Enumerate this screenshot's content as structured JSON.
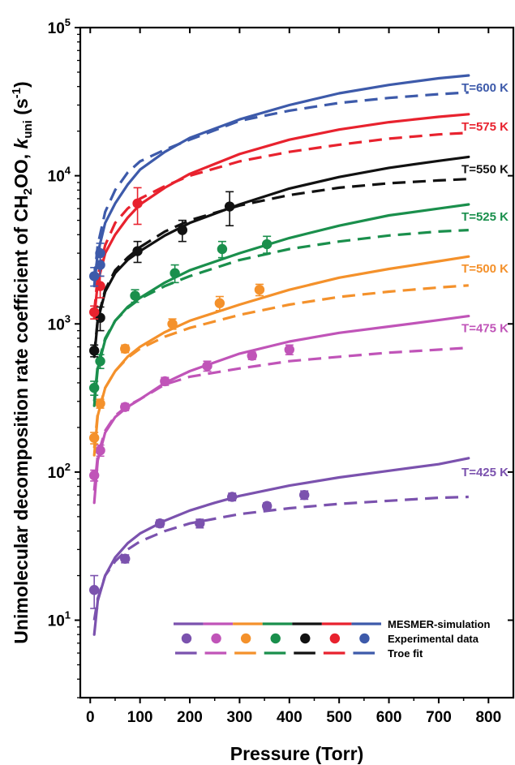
{
  "chart_data": {
    "type": "line",
    "xlabel": "Pressure (Torr)",
    "ylabel_parts": [
      "Unimolecular decomposition rate coefficient of CH",
      "2",
      "OO, ",
      "k",
      "uni",
      " (s",
      "-1",
      ")"
    ],
    "xlim": [
      -20,
      850
    ],
    "ylim": [
      3,
      100000
    ],
    "y_scale": "log",
    "x_ticks": [
      0,
      100,
      200,
      300,
      400,
      500,
      600,
      700,
      800
    ],
    "x_tick_labels": [
      "0",
      "100",
      "200",
      "300",
      "400",
      "500",
      "600",
      "700",
      "800"
    ],
    "y_ticks": [
      10,
      100,
      1000,
      10000,
      100000
    ],
    "y_tick_labels": [
      {
        "base": "10",
        "exp": "1"
      },
      {
        "base": "10",
        "exp": "2"
      },
      {
        "base": "10",
        "exp": "3"
      },
      {
        "base": "10",
        "exp": "4"
      },
      {
        "base": "10",
        "exp": "5"
      }
    ],
    "series": [
      {
        "label": "T=425 K",
        "color": "#7b52ae",
        "mesmer": [
          [
            8,
            8
          ],
          [
            15,
            13.5
          ],
          [
            30,
            20
          ],
          [
            50,
            26.5
          ],
          [
            75,
            33
          ],
          [
            100,
            38.5
          ],
          [
            150,
            47
          ],
          [
            200,
            55
          ],
          [
            250,
            62
          ],
          [
            300,
            69
          ],
          [
            400,
            81
          ],
          [
            500,
            92
          ],
          [
            600,
            102
          ],
          [
            700,
            113
          ],
          [
            760,
            124
          ]
        ],
        "troe": [
          [
            8,
            10
          ],
          [
            15,
            14
          ],
          [
            30,
            20
          ],
          [
            50,
            25
          ],
          [
            75,
            30
          ],
          [
            100,
            34
          ],
          [
            150,
            40
          ],
          [
            200,
            45
          ],
          [
            300,
            52
          ],
          [
            400,
            57
          ],
          [
            500,
            61
          ],
          [
            600,
            64
          ],
          [
            700,
            67
          ],
          [
            760,
            68
          ]
        ],
        "points": [
          [
            8,
            16,
            4
          ],
          [
            70,
            26,
            1.6
          ],
          [
            140,
            45,
            2.5
          ],
          [
            220,
            45,
            3
          ],
          [
            285,
            68,
            4
          ],
          [
            355,
            59,
            3
          ],
          [
            430,
            70,
            4.5
          ]
        ]
      },
      {
        "label": "T=475 K",
        "color": "#c054b8",
        "mesmer": [
          [
            8,
            62
          ],
          [
            15,
            120
          ],
          [
            30,
            185
          ],
          [
            50,
            235
          ],
          [
            75,
            275
          ],
          [
            100,
            310
          ],
          [
            150,
            400
          ],
          [
            200,
            480
          ],
          [
            300,
            630
          ],
          [
            400,
            760
          ],
          [
            500,
            870
          ],
          [
            600,
            960
          ],
          [
            700,
            1060
          ],
          [
            760,
            1130
          ]
        ],
        "troe": [
          [
            8,
            75
          ],
          [
            15,
            130
          ],
          [
            30,
            190
          ],
          [
            50,
            240
          ],
          [
            75,
            280
          ],
          [
            100,
            310
          ],
          [
            150,
            390
          ],
          [
            200,
            440
          ],
          [
            300,
            500
          ],
          [
            400,
            560
          ],
          [
            500,
            600
          ],
          [
            600,
            640
          ],
          [
            700,
            670
          ],
          [
            760,
            690
          ]
        ],
        "points": [
          [
            8,
            95,
            8
          ],
          [
            20,
            140,
            12
          ],
          [
            70,
            275,
            15
          ],
          [
            150,
            410,
            25
          ],
          [
            235,
            520,
            40
          ],
          [
            325,
            610,
            35
          ],
          [
            400,
            670,
            50
          ]
        ]
      },
      {
        "label": "T=500 K",
        "color": "#f4912b",
        "mesmer": [
          [
            8,
            130
          ],
          [
            15,
            240
          ],
          [
            30,
            370
          ],
          [
            50,
            480
          ],
          [
            75,
            600
          ],
          [
            100,
            700
          ],
          [
            150,
            880
          ],
          [
            200,
            1050
          ],
          [
            300,
            1350
          ],
          [
            400,
            1700
          ],
          [
            500,
            2050
          ],
          [
            600,
            2350
          ],
          [
            700,
            2650
          ],
          [
            760,
            2850
          ]
        ],
        "troe": [
          [
            8,
            145
          ],
          [
            15,
            250
          ],
          [
            30,
            370
          ],
          [
            50,
            480
          ],
          [
            75,
            590
          ],
          [
            100,
            680
          ],
          [
            150,
            820
          ],
          [
            200,
            940
          ],
          [
            300,
            1150
          ],
          [
            400,
            1350
          ],
          [
            500,
            1520
          ],
          [
            600,
            1650
          ],
          [
            700,
            1760
          ],
          [
            760,
            1820
          ]
        ],
        "points": [
          [
            8,
            170,
            15
          ],
          [
            20,
            290,
            20
          ],
          [
            70,
            680,
            40
          ],
          [
            165,
            1000,
            80
          ],
          [
            260,
            1380,
            150
          ],
          [
            340,
            1700,
            150
          ]
        ]
      },
      {
        "label": "T=525 K",
        "color": "#1a8f4c",
        "mesmer": [
          [
            8,
            280
          ],
          [
            15,
            500
          ],
          [
            30,
            780
          ],
          [
            50,
            1050
          ],
          [
            75,
            1300
          ],
          [
            100,
            1500
          ],
          [
            150,
            1900
          ],
          [
            200,
            2300
          ],
          [
            300,
            3000
          ],
          [
            400,
            3800
          ],
          [
            500,
            4600
          ],
          [
            600,
            5400
          ],
          [
            700,
            6000
          ],
          [
            760,
            6400
          ]
        ],
        "troe": [
          [
            8,
            300
          ],
          [
            15,
            530
          ],
          [
            30,
            800
          ],
          [
            50,
            1050
          ],
          [
            75,
            1280
          ],
          [
            100,
            1480
          ],
          [
            150,
            1800
          ],
          [
            200,
            2100
          ],
          [
            300,
            2700
          ],
          [
            400,
            3200
          ],
          [
            500,
            3600
          ],
          [
            600,
            3950
          ],
          [
            700,
            4200
          ],
          [
            760,
            4300
          ]
        ],
        "points": [
          [
            8,
            370,
            40
          ],
          [
            20,
            560,
            60
          ],
          [
            90,
            1550,
            150
          ],
          [
            170,
            2200,
            300
          ],
          [
            265,
            3200,
            400
          ],
          [
            355,
            3450,
            450
          ]
        ]
      },
      {
        "label": "T=550 K",
        "color": "#111111",
        "mesmer": [
          [
            8,
            600
          ],
          [
            15,
            1050
          ],
          [
            30,
            1650
          ],
          [
            50,
            2200
          ],
          [
            75,
            2700
          ],
          [
            100,
            3100
          ],
          [
            150,
            3950
          ],
          [
            200,
            4800
          ],
          [
            300,
            6400
          ],
          [
            400,
            8200
          ],
          [
            500,
            9800
          ],
          [
            600,
            11300
          ],
          [
            700,
            12600
          ],
          [
            760,
            13400
          ]
        ],
        "troe": [
          [
            8,
            620
          ],
          [
            15,
            1080
          ],
          [
            30,
            1700
          ],
          [
            50,
            2300
          ],
          [
            75,
            2800
          ],
          [
            100,
            3300
          ],
          [
            150,
            4200
          ],
          [
            200,
            5000
          ],
          [
            300,
            6300
          ],
          [
            400,
            7400
          ],
          [
            500,
            8300
          ],
          [
            600,
            8900
          ],
          [
            700,
            9300
          ],
          [
            760,
            9500
          ]
        ],
        "points": [
          [
            8,
            660,
            60
          ],
          [
            20,
            1100,
            200
          ],
          [
            95,
            3100,
            500
          ],
          [
            185,
            4300,
            700
          ],
          [
            280,
            6200,
            1600
          ]
        ]
      },
      {
        "label": "T=575 K",
        "color": "#e8222e",
        "mesmer": [
          [
            8,
            1100
          ],
          [
            15,
            1900
          ],
          [
            30,
            3000
          ],
          [
            50,
            4000
          ],
          [
            75,
            5200
          ],
          [
            100,
            6400
          ],
          [
            150,
            8300
          ],
          [
            200,
            10300
          ],
          [
            300,
            14000
          ],
          [
            400,
            17500
          ],
          [
            500,
            20500
          ],
          [
            600,
            23000
          ],
          [
            700,
            25000
          ],
          [
            760,
            26000
          ]
        ],
        "troe": [
          [
            8,
            1200
          ],
          [
            15,
            2100
          ],
          [
            30,
            3400
          ],
          [
            50,
            4800
          ],
          [
            75,
            6000
          ],
          [
            100,
            7000
          ],
          [
            150,
            8500
          ],
          [
            200,
            10000
          ],
          [
            300,
            12500
          ],
          [
            400,
            14500
          ],
          [
            500,
            16200
          ],
          [
            600,
            17800
          ],
          [
            700,
            19000
          ],
          [
            760,
            19500
          ]
        ],
        "points": [
          [
            8,
            1200,
            120
          ],
          [
            20,
            1800,
            300
          ],
          [
            95,
            6500,
            1800
          ]
        ]
      },
      {
        "label": "T=600 K",
        "color": "#3d5aaa",
        "mesmer": [
          [
            8,
            1800
          ],
          [
            15,
            3000
          ],
          [
            30,
            4800
          ],
          [
            50,
            6500
          ],
          [
            75,
            8700
          ],
          [
            100,
            11000
          ],
          [
            150,
            14500
          ],
          [
            200,
            18000
          ],
          [
            300,
            24000
          ],
          [
            400,
            30000
          ],
          [
            500,
            36000
          ],
          [
            600,
            41000
          ],
          [
            700,
            45500
          ],
          [
            760,
            47500
          ]
        ],
        "troe": [
          [
            8,
            2000
          ],
          [
            15,
            3400
          ],
          [
            30,
            5700
          ],
          [
            50,
            8000
          ],
          [
            75,
            10500
          ],
          [
            100,
            12500
          ],
          [
            150,
            15000
          ],
          [
            200,
            17500
          ],
          [
            300,
            23500
          ],
          [
            400,
            27500
          ],
          [
            500,
            31000
          ],
          [
            600,
            33500
          ],
          [
            700,
            35500
          ],
          [
            760,
            36500
          ]
        ],
        "points": [
          [
            8,
            2100,
            300
          ],
          [
            20,
            2500,
            400
          ],
          [
            20,
            3000,
            500
          ]
        ]
      }
    ],
    "legend": {
      "placement": "bottom-right",
      "entries": [
        {
          "label": "MESMER-simulation",
          "style": "solid"
        },
        {
          "label": "Experimental data",
          "style": "markers"
        },
        {
          "label": "Troe fit",
          "style": "dashed"
        }
      ]
    }
  }
}
